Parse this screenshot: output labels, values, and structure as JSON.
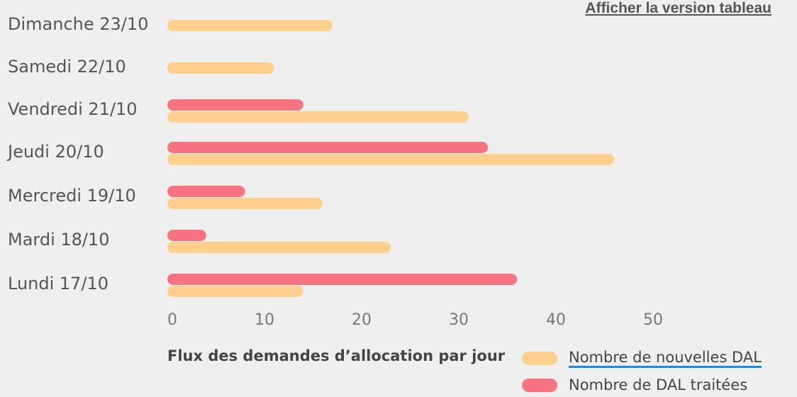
{
  "link": {
    "table_view": "Afficher la version tableau"
  },
  "chart_data": {
    "type": "bar",
    "orientation": "horizontal",
    "title": "Flux des demandes d’allocation par jour",
    "categories": [
      "Dimanche 23/10",
      "Samedi 22/10",
      "Vendredi 21/10",
      "Jeudi 20/10",
      "Mercredi 19/10",
      "Mardi 18/10",
      "Lundi 17/10"
    ],
    "series": [
      {
        "name": "Nombre de nouvelles DAL",
        "color": "#fecf8d",
        "values": [
          17,
          11,
          31,
          46,
          16,
          23,
          14
        ]
      },
      {
        "name": "Nombre de DAL traitées",
        "color": "#f87381",
        "values": [
          0,
          0,
          14,
          33,
          8,
          4,
          36
        ]
      }
    ],
    "xticks": [
      0,
      10,
      20,
      30,
      40,
      50
    ],
    "xlim": [
      0,
      57
    ],
    "grid": false,
    "legend_position": "bottom-right"
  }
}
